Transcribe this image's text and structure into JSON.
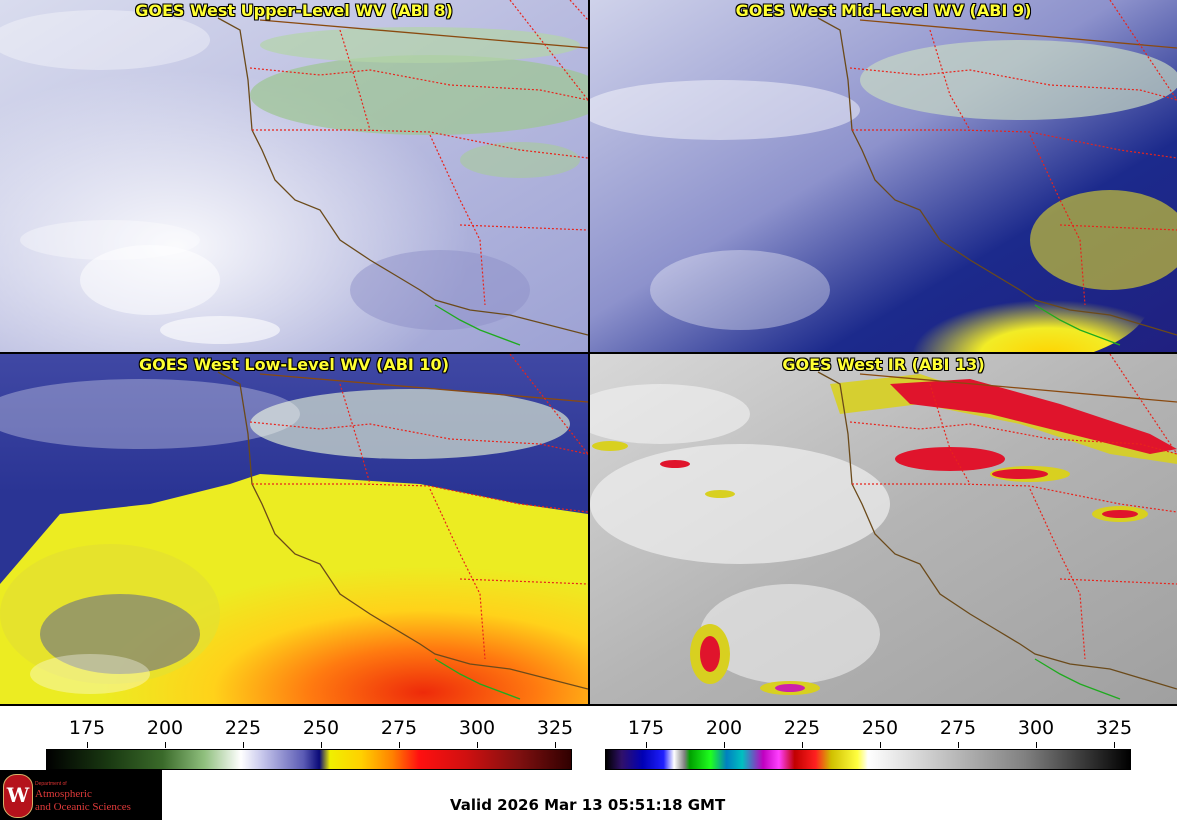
{
  "panels": [
    {
      "title": "GOES West Upper-Level WV (ABI 8)"
    },
    {
      "title": "GOES West Mid-Level WV (ABI 9)"
    },
    {
      "title": "GOES West Low-Level WV (ABI 10)"
    },
    {
      "title": "GOES West IR (ABI 13)"
    }
  ],
  "colorbars": [
    {
      "ticks": [
        "175",
        "200",
        "225",
        "250",
        "275",
        "300",
        "325"
      ],
      "range": [
        162,
        330
      ],
      "style": "water-vapor"
    },
    {
      "ticks": [
        "175",
        "200",
        "225",
        "250",
        "275",
        "300",
        "325"
      ],
      "range": [
        162,
        330
      ],
      "style": "infrared"
    }
  ],
  "footer": {
    "valid": "Valid 2026 Mar 13 05:51:18 GMT"
  },
  "logo": {
    "seal": "W",
    "dept": "Department of",
    "line1": "Atmospheric",
    "line2": "and Oceanic Sciences"
  },
  "colors": {
    "border_state": "#e8241c",
    "coastline": "#6b4a1a",
    "border_mexico": "#1faa1f",
    "title": "#ffff33"
  }
}
